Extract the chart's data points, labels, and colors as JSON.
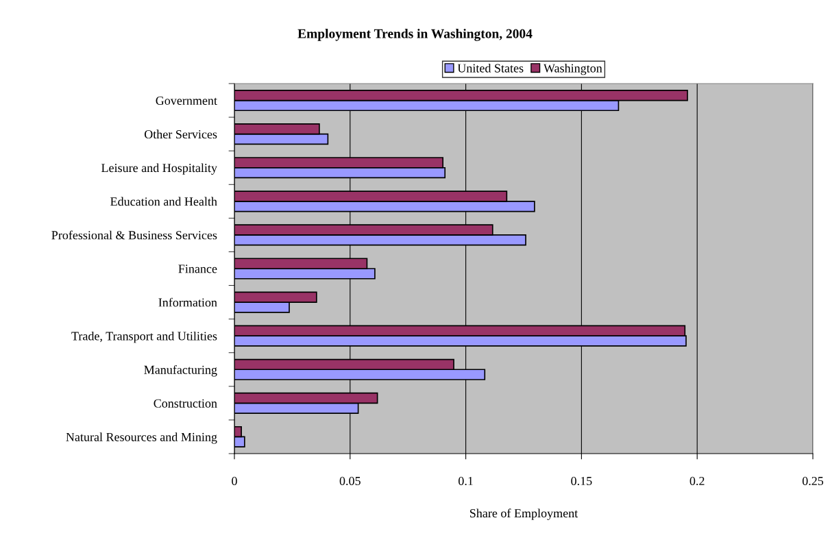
{
  "chart_data": {
    "type": "bar",
    "orientation": "horizontal",
    "title": "Employment Trends in Washington, 2004",
    "xlabel": "Share of Employment",
    "categories": [
      "Government",
      "Other Services",
      "Leisure and Hospitality",
      "Education and Health",
      "Professional & Business Services",
      "Finance",
      "Information",
      "Trade, Transport and Utilities",
      "Manufacturing",
      "Construction",
      "Natural Resources and Mining"
    ],
    "series": [
      {
        "name": "United States",
        "color": "#9999ff",
        "values": [
          0.166,
          0.0404,
          0.091,
          0.1297,
          0.1259,
          0.0607,
          0.0237,
          0.1952,
          0.1082,
          0.0535,
          0.0044
        ]
      },
      {
        "name": "Washington",
        "color": "#993366",
        "values": [
          0.1958,
          0.0367,
          0.0901,
          0.1177,
          0.1116,
          0.0573,
          0.0355,
          0.1947,
          0.0948,
          0.0618,
          0.003
        ]
      }
    ],
    "xlim": [
      0,
      0.25
    ],
    "xticks": [
      0,
      0.05,
      0.1,
      0.15,
      0.2,
      0.25
    ],
    "grid": "x",
    "legend": "top"
  }
}
